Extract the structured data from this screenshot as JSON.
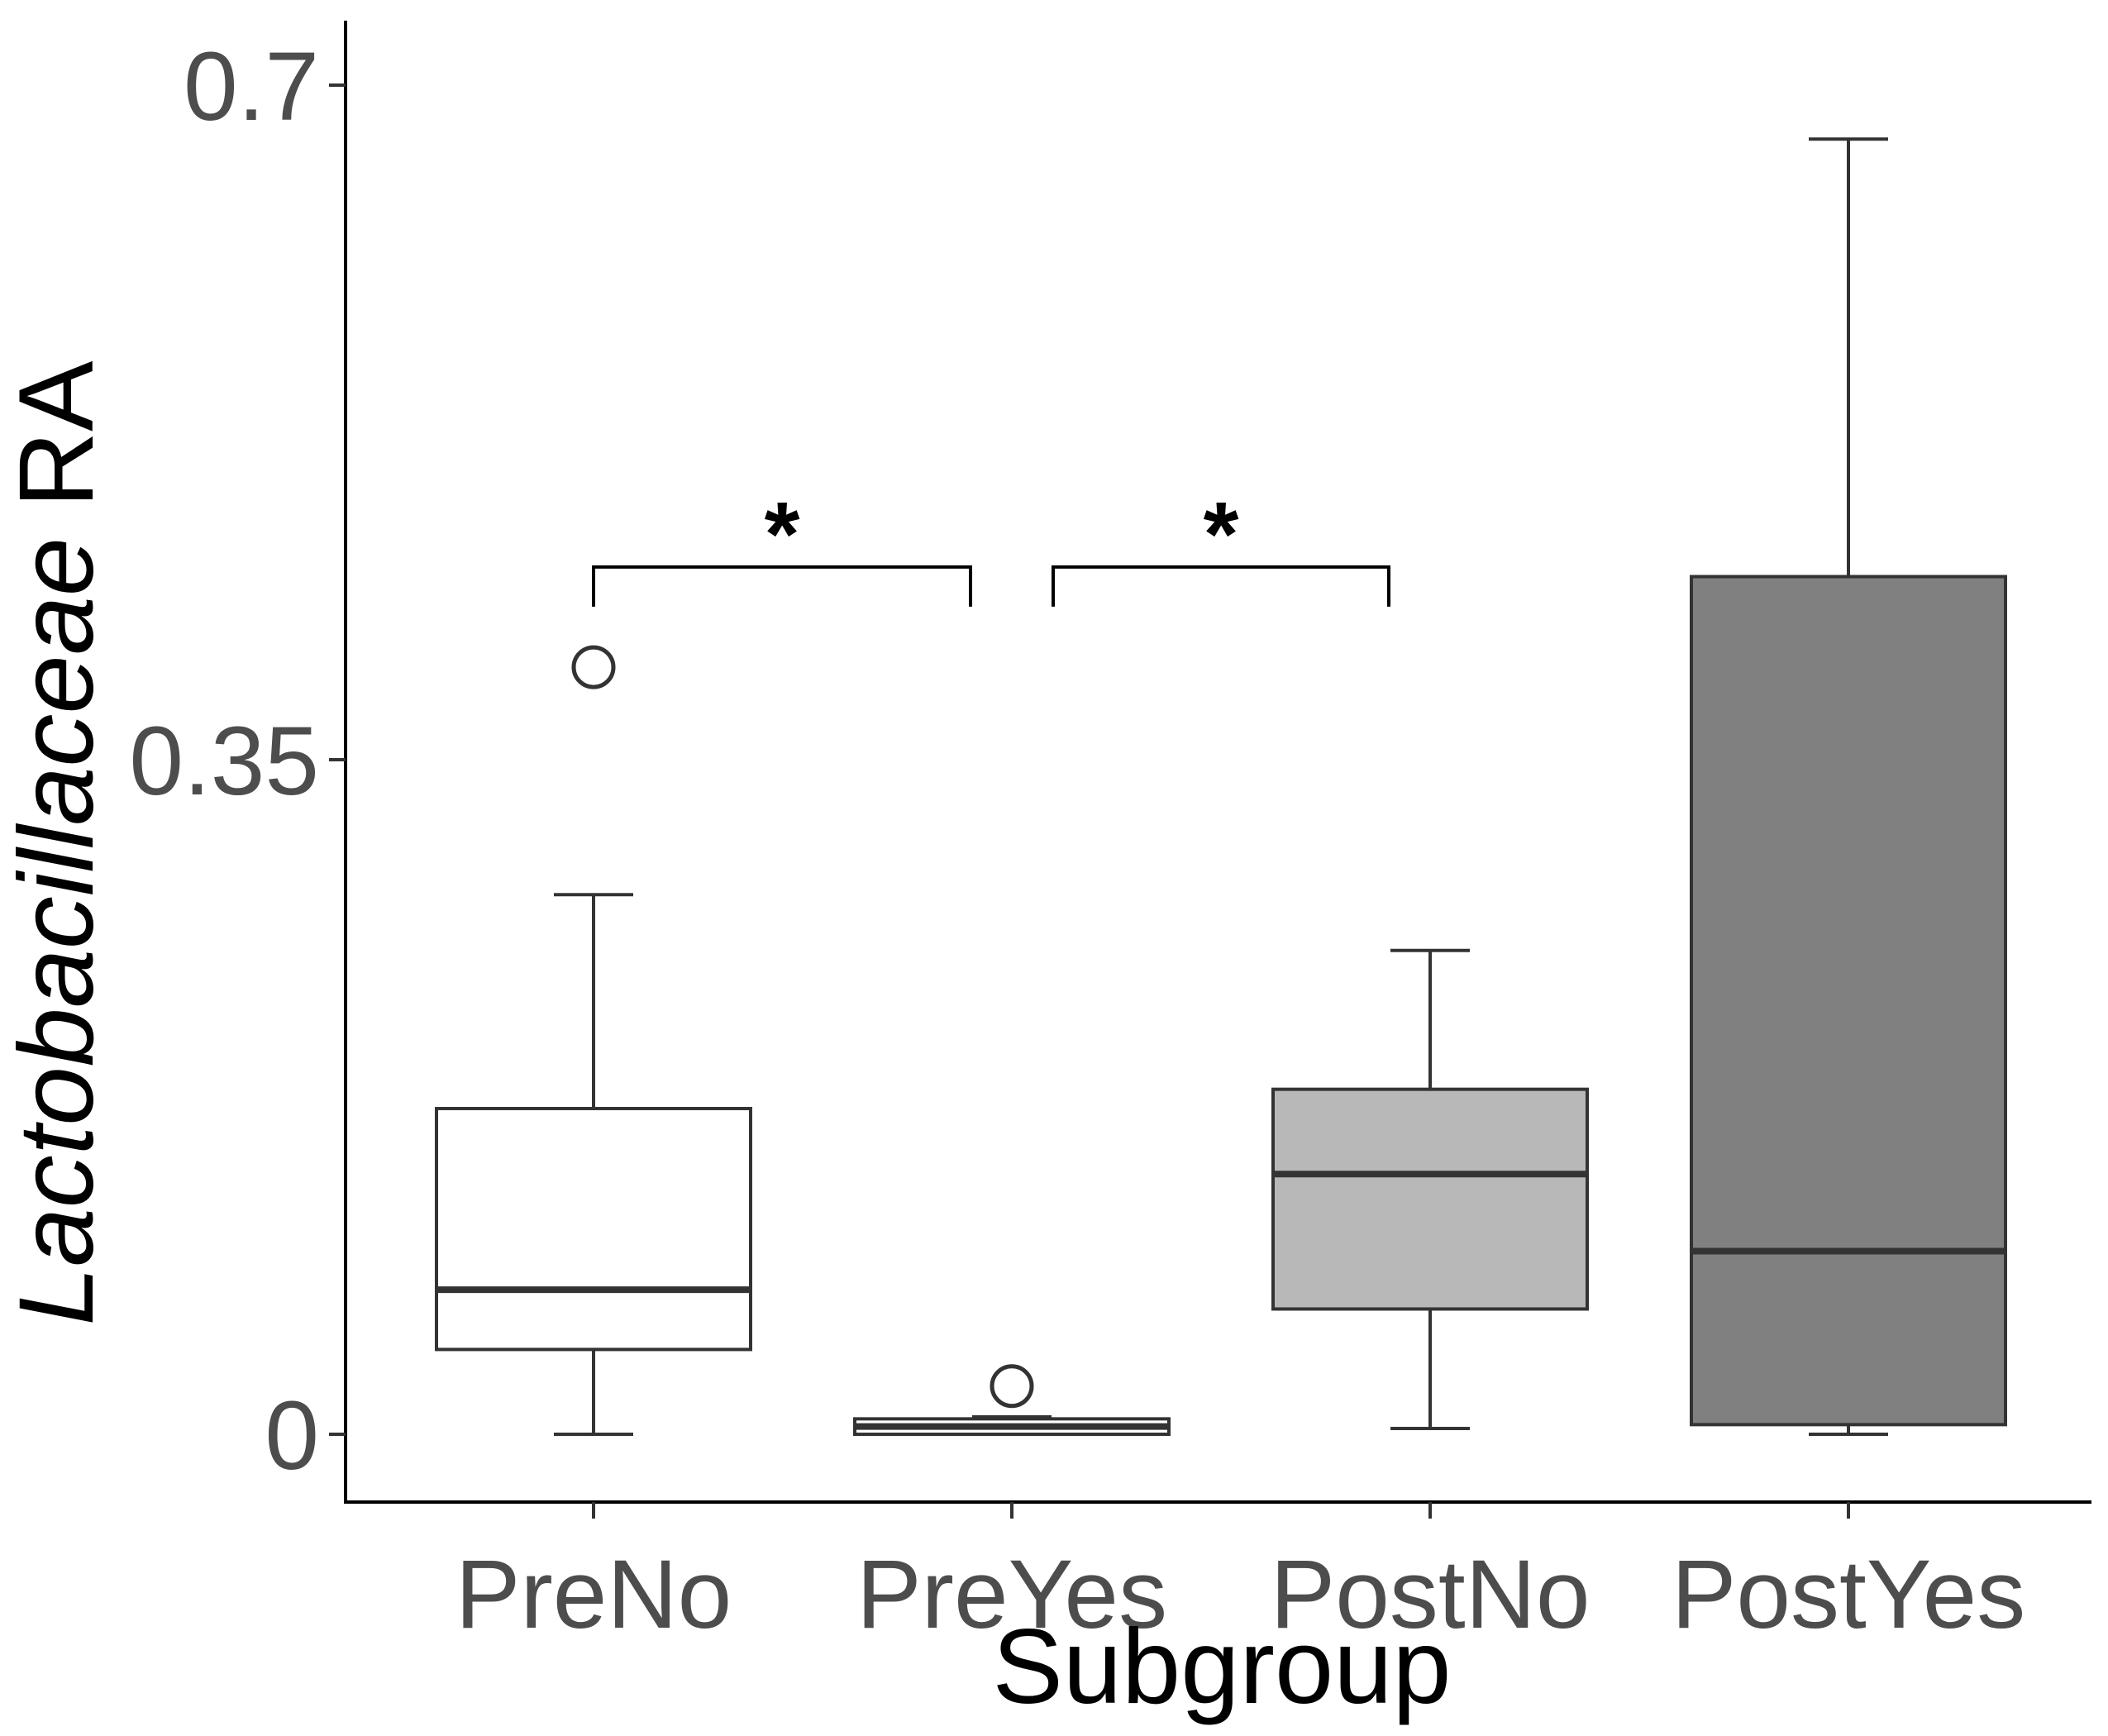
{
  "chart_data": {
    "type": "box",
    "xlabel": "Subgroup",
    "ylabel_italic": "Lactobacillaceae",
    "ylabel_plain": " RA",
    "ylim": [
      -0.035,
      0.735
    ],
    "y_ticks": [
      {
        "value": 0,
        "label": "0"
      },
      {
        "value": 0.35,
        "label": "0.35"
      },
      {
        "value": 0.7,
        "label": "0.7"
      }
    ],
    "grid": false,
    "legend": "none",
    "categories": [
      "PreNo",
      "PreYes",
      "PostNo",
      "PostYes"
    ],
    "boxes": [
      {
        "category": "PreNo",
        "fill": "#ffffff",
        "lower_whisker": 0.0,
        "q1": 0.044,
        "median": 0.075,
        "q3": 0.169,
        "upper_whisker": 0.28,
        "outliers": [
          0.398
        ]
      },
      {
        "category": "PreYes",
        "fill": "#ffffff",
        "lower_whisker": 0.0,
        "q1": 0.0,
        "median": 0.004,
        "q3": 0.008,
        "upper_whisker": 0.009,
        "outliers": [
          0.025
        ]
      },
      {
        "category": "PostNo",
        "fill": "#b8b8b8",
        "lower_whisker": 0.003,
        "q1": 0.065,
        "median": 0.135,
        "q3": 0.179,
        "upper_whisker": 0.251,
        "outliers": []
      },
      {
        "category": "PostYes",
        "fill": "#808080",
        "lower_whisker": 0.0,
        "q1": 0.005,
        "median": 0.095,
        "q3": 0.445,
        "upper_whisker": 0.672,
        "outliers": []
      }
    ],
    "significance": [
      {
        "from": "PreNo",
        "to": "PreYes",
        "y": 0.45,
        "label": "*"
      },
      {
        "from": "PreYes",
        "to": "PostNo",
        "y": 0.45,
        "label": "*"
      }
    ]
  }
}
